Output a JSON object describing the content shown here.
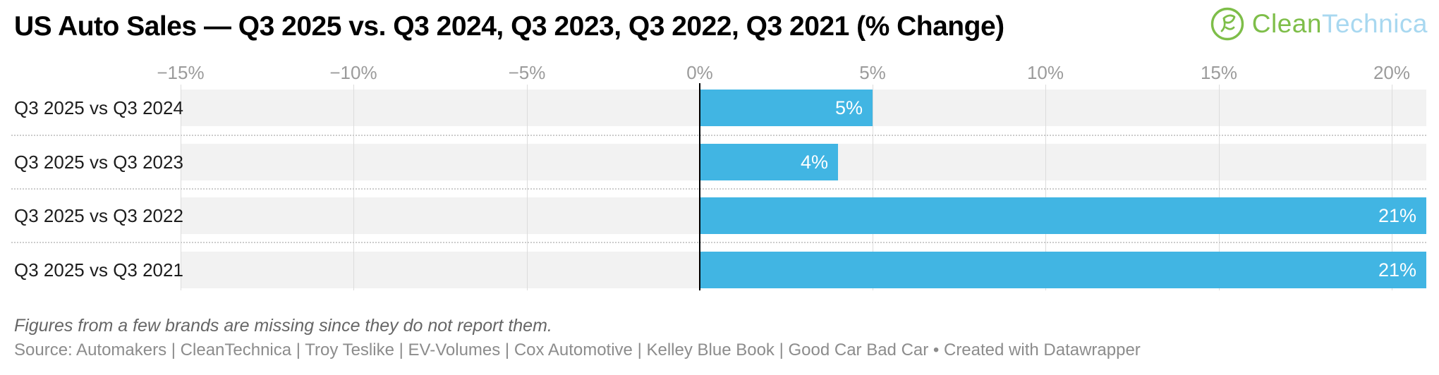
{
  "header": {
    "title": "US Auto Sales — Q3 2025 vs. Q3 2024, Q3 2023, Q3 2022, Q3 2021 (% Change)",
    "logo": {
      "icon": "cleantechnica-eco-icon",
      "clean": "Clean",
      "technica": "Technica",
      "green": "#7EBE49",
      "light_blue": "#A8D8F0"
    }
  },
  "chart_data": {
    "type": "bar",
    "orientation": "horizontal",
    "title": "US Auto Sales — Q3 2025 vs. Q3 2024, Q3 2023, Q3 2022, Q3 2021 (% Change)",
    "xlabel": "",
    "ylabel": "",
    "categories": [
      "Q3 2025 vs Q3 2024",
      "Q3 2025 vs Q3 2023",
      "Q3 2025 vs Q3 2022",
      "Q3 2025 vs Q3 2021"
    ],
    "values": [
      5,
      4,
      21,
      21
    ],
    "value_labels": [
      "5%",
      "4%",
      "21%",
      "21%"
    ],
    "axis": {
      "min": -15,
      "max": 21,
      "ticks": [
        -15,
        -10,
        -5,
        0,
        5,
        10,
        15,
        20
      ],
      "tick_labels": [
        "−15%",
        "−10%",
        "−5%",
        "0%",
        "5%",
        "10%",
        "15%",
        "20%"
      ]
    },
    "grid": true,
    "legend": "none",
    "bar_color": "#41B5E3",
    "track_color": "#F2F2F2",
    "gridline_color": "#DCDCDC",
    "zero_line_color": "#000000",
    "value_label_color": "#FFFFFF"
  },
  "footer": {
    "note": "Figures from a few brands are missing since they do not report them.",
    "source": "Source: Automakers | CleanTechnica | Troy Teslike | EV-Volumes | Cox Automotive | Kelley Blue Book | Good Car Bad Car • Created with Datawrapper"
  }
}
